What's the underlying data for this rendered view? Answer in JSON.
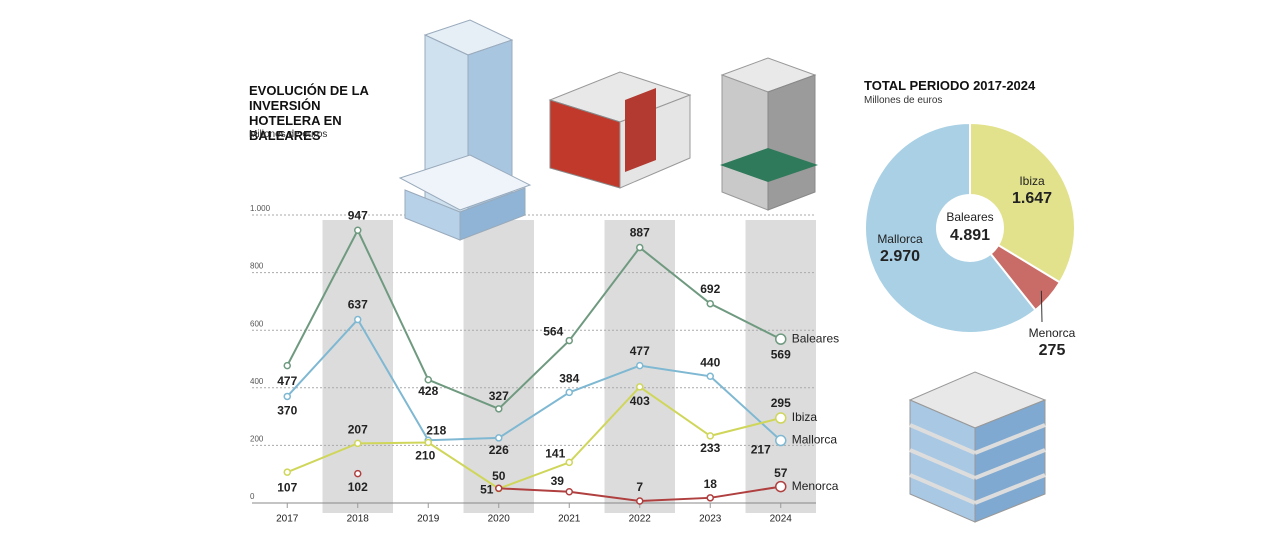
{
  "chart_data": [
    {
      "type": "line",
      "title": "EVOLUCIÓN DE LA INVERSIÓN HOTELERA EN BALEARES",
      "subtitle": "Millones de euros",
      "categories": [
        "2017",
        "2018",
        "2019",
        "2020",
        "2021",
        "2022",
        "2023",
        "2024"
      ],
      "series": [
        {
          "name": "Baleares",
          "color": "#6f9a80",
          "values": [
            477,
            947,
            428,
            327,
            564,
            887,
            692,
            569
          ]
        },
        {
          "name": "Mallorca",
          "color": "#7fb8d2",
          "values": [
            370,
            637,
            218,
            226,
            384,
            477,
            440,
            217
          ]
        },
        {
          "name": "Ibiza",
          "color": "#cfd65a",
          "values": [
            107,
            207,
            210,
            50,
            141,
            403,
            233,
            295
          ]
        },
        {
          "name": "Menorca",
          "color": "#b03f3f",
          "values": [
            null,
            102,
            null,
            51,
            39,
            7,
            18,
            57
          ]
        }
      ],
      "ylim": [
        0,
        1000
      ],
      "yticks": [
        0,
        200,
        400,
        600,
        800,
        {
          "value": 1000,
          "label": "1.000"
        }
      ],
      "grid": true
    },
    {
      "type": "pie",
      "title": "TOTAL PERIODO 2017-2024",
      "subtitle": "Millones de euros",
      "categories": [
        "Ibiza",
        "Menorca",
        "Mallorca"
      ],
      "values": [
        1647,
        275,
        2970
      ],
      "value_labels": [
        "1.647",
        "275",
        "2.970"
      ],
      "colors": [
        "#e2e28c",
        "#c96b66",
        "#a9d0e4"
      ],
      "total": {
        "label": "Baleares",
        "value": 4891,
        "value_label": "4.891"
      }
    }
  ]
}
